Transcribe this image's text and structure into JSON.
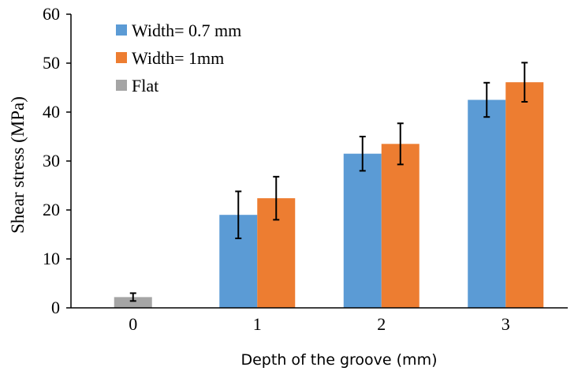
{
  "chart_data": {
    "type": "bar",
    "xlabel": "Depth of the groove (mm)",
    "ylabel": "Shear stress (MPa)",
    "ylim": [
      0,
      60
    ],
    "yticks": [
      0,
      10,
      20,
      30,
      40,
      50,
      60
    ],
    "categories": [
      "0",
      "1",
      "2",
      "3"
    ],
    "legend_position": "top-left",
    "grid": false,
    "series": [
      {
        "name": "Width= 0.7 mm",
        "color": "#5b9bd5",
        "values": [
          null,
          19.0,
          31.5,
          42.5
        ],
        "errors": [
          null,
          4.8,
          3.5,
          3.5
        ]
      },
      {
        "name": "Width= 1mm",
        "color": "#ed7d31",
        "values": [
          null,
          22.4,
          33.5,
          46.1
        ],
        "errors": [
          null,
          4.4,
          4.2,
          4.0
        ]
      },
      {
        "name": "Flat",
        "color": "#a5a5a5",
        "values": [
          2.2,
          null,
          null,
          null
        ],
        "errors": [
          0.8,
          null,
          null,
          null
        ]
      }
    ]
  }
}
